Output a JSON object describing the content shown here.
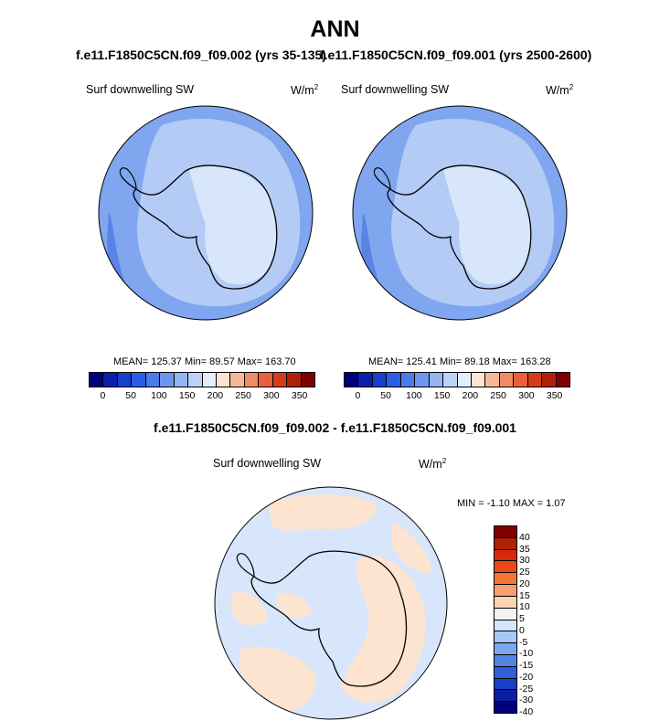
{
  "title": "ANN",
  "panels": [
    {
      "case_title": "f.e11.F1850C5CN.f09_f09.002 (yrs 35-135)",
      "variable": "Surf downwelling SW",
      "units_base": "W/m",
      "units_exp": "2",
      "stats": "MEAN= 125.37  Min=  89.57  Max= 163.70"
    },
    {
      "case_title": "f.e11.F1850C5CN.f09_f09.001 (yrs 2500-2600)",
      "variable": "Surf downwelling SW",
      "units_base": "W/m",
      "units_exp": "2",
      "stats": "MEAN= 125.41  Min=  89.18  Max= 163.28"
    }
  ],
  "abs_colorbar": {
    "colors": [
      "#00007f",
      "#0a1fa8",
      "#1540cc",
      "#2a5ee6",
      "#4a7be8",
      "#6d97ee",
      "#96b6f2",
      "#bcd1f7",
      "#e3edfb",
      "#fde4d0",
      "#f6b896",
      "#f08c63",
      "#e8603c",
      "#d63c1c",
      "#b02008",
      "#800000"
    ],
    "tick_labels": [
      "0",
      "50",
      "100",
      "150",
      "200",
      "250",
      "300",
      "350"
    ]
  },
  "diff": {
    "title": "f.e11.F1850C5CN.f09_f09.002 - f.e11.F1850C5CN.f09_f09.001",
    "variable": "Surf downwelling SW",
    "units_base": "W/m",
    "units_exp": "2",
    "stats": "MIN =  -1.10 MAX =   1.07",
    "colorbar": {
      "colors": [
        "#800000",
        "#b02008",
        "#d62a08",
        "#ec4a14",
        "#f27536",
        "#f5a070",
        "#fcd3b6",
        "#f4f4f4",
        "#d4e6fb",
        "#a6c8f5",
        "#7ba8ee",
        "#5283e5",
        "#2f5fdb",
        "#1a3fc8",
        "#0a1fa0",
        "#00007f"
      ],
      "tick_labels": [
        "40",
        "35",
        "30",
        "25",
        "20",
        "15",
        "10",
        "5",
        "0",
        "-5",
        "-10",
        "-15",
        "-20",
        "-25",
        "-30",
        "-40"
      ]
    }
  },
  "colors": {
    "ocean_mid": "#7fa6ef",
    "ocean_light": "#b3cbf5",
    "ocean_dark": "#5a83e6",
    "plateau": "#d8e6fb",
    "diff_pos": "#fde4d0",
    "diff_neg": "#d8e6fb"
  }
}
